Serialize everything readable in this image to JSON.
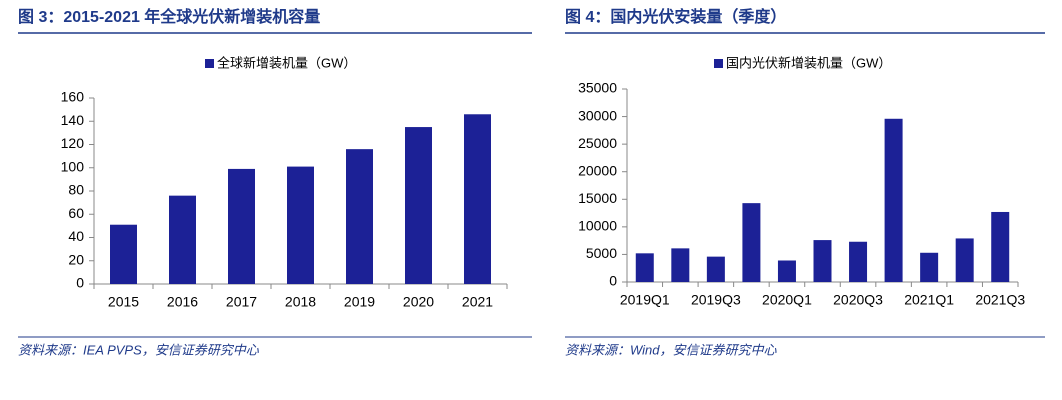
{
  "chart_data": [
    {
      "type": "bar",
      "title": "图 3：2015-2021 年全球光伏新增装机容量",
      "categories": [
        "2015",
        "2016",
        "2017",
        "2018",
        "2019",
        "2020",
        "2021"
      ],
      "series": [
        {
          "name": "全球新增装机量（GW）",
          "color": "#1c2196",
          "values": [
            51,
            76,
            99,
            101,
            116,
            135,
            146
          ]
        }
      ],
      "ylim": [
        0,
        160
      ],
      "yticks": [
        0,
        20,
        40,
        60,
        80,
        100,
        120,
        140,
        160
      ],
      "grid": false,
      "legend": "top",
      "source": "资料来源：IEA PVPS，安信证券研究中心"
    },
    {
      "type": "bar",
      "title": "图 4：国内光伏安装量（季度）",
      "categories": [
        "2019Q1",
        null,
        "2019Q3",
        null,
        "2020Q1",
        null,
        "2020Q3",
        null,
        "2021Q1",
        null,
        "2021Q3"
      ],
      "series": [
        {
          "name": "国内光伏新增装机量（GW）",
          "color": "#1c2196",
          "values": [
            5200,
            6100,
            4600,
            14300,
            3900,
            7600,
            7300,
            29600,
            5300,
            7900,
            12700
          ]
        }
      ],
      "ylim": [
        0,
        35000
      ],
      "yticks": [
        0,
        5000,
        10000,
        15000,
        20000,
        25000,
        30000,
        35000
      ],
      "grid": false,
      "legend": "top",
      "source": "资料来源：Wind，安信证券研究中心"
    }
  ]
}
